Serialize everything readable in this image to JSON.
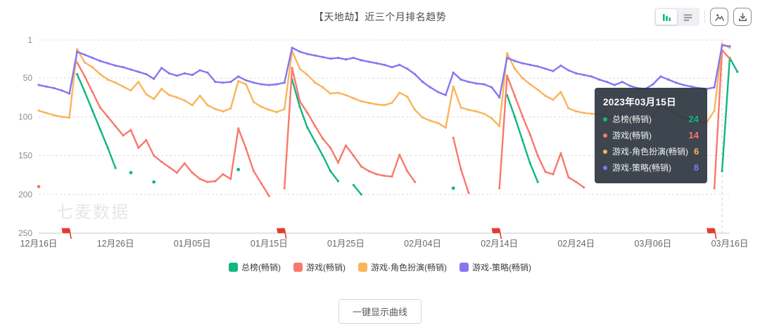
{
  "title": "【天地劫】近三个月排名趋势",
  "toolbar": {
    "chart_type_toggle": [
      "bar-chart-view",
      "list-view"
    ],
    "buttons": [
      "preview-image",
      "download-image"
    ],
    "active_color": "#10b77f",
    "inactive_color": "#9aa0a6"
  },
  "tooltip": {
    "date": "2023年03月15日",
    "rows": [
      {
        "label": "总榜(畅销)",
        "value": "24",
        "color": "#10b77f"
      },
      {
        "label": "游戏(畅销)",
        "value": "14",
        "color": "#f8796c"
      },
      {
        "label": "游戏-角色扮演(畅销)",
        "value": "6",
        "color": "#fbb45c"
      },
      {
        "label": "游戏-策略(畅销)",
        "value": "8",
        "color": "#8676f0"
      }
    ]
  },
  "legend": {
    "items": [
      {
        "label": "总榜(畅销)",
        "color": "#10b77f"
      },
      {
        "label": "游戏(畅销)",
        "color": "#f8796c"
      },
      {
        "label": "游戏-角色扮演(畅销)",
        "color": "#fbb45c"
      },
      {
        "label": "游戏-策略(畅销)",
        "color": "#8676f0"
      }
    ]
  },
  "actions": {
    "show_curves_label": "一键显示曲线"
  },
  "chart_data": {
    "type": "line",
    "title": "【天地劫】近三个月排名趋势",
    "watermark": "七麦数据",
    "y_axis": {
      "inverted": true,
      "range": [
        1,
        250
      ],
      "ticks": [
        1,
        50,
        100,
        150,
        200,
        250
      ],
      "grid": "dashed"
    },
    "x_axis": {
      "ticks": [
        {
          "day": 0,
          "label": "12月16日"
        },
        {
          "day": 10,
          "label": "12月26日"
        },
        {
          "day": 20,
          "label": "01月05日"
        },
        {
          "day": 30,
          "label": "01月15日"
        },
        {
          "day": 40,
          "label": "01月25日"
        },
        {
          "day": 50,
          "label": "02月04日"
        },
        {
          "day": 60,
          "label": "02月14日"
        },
        {
          "day": 70,
          "label": "02月24日"
        },
        {
          "day": 80,
          "label": "03月06日"
        },
        {
          "day": 90,
          "label": "03月16日"
        }
      ]
    },
    "flag_marker_days": [
      4,
      32,
      60,
      88
    ],
    "flag_color": "#e8392f",
    "crosshair_day": 89,
    "legend_position": "bottom",
    "series": [
      {
        "name": "总榜(畅销)",
        "color": "#10b77f",
        "values": [
          null,
          null,
          null,
          null,
          null,
          45,
          68,
          92,
          116,
          140,
          166,
          null,
          172,
          null,
          null,
          184,
          null,
          null,
          null,
          null,
          null,
          null,
          null,
          null,
          null,
          null,
          168,
          null,
          null,
          null,
          null,
          null,
          null,
          52,
          87,
          114,
          132,
          150,
          170,
          183,
          null,
          188,
          200,
          null,
          null,
          null,
          null,
          null,
          null,
          null,
          null,
          null,
          null,
          null,
          192,
          null,
          null,
          null,
          null,
          null,
          null,
          72,
          100,
          130,
          160,
          184,
          null,
          null,
          null,
          null,
          null,
          null,
          null,
          null,
          null,
          null,
          null,
          null,
          null,
          null,
          null,
          null,
          null,
          null,
          null,
          null,
          null,
          null,
          null,
          170,
          24,
          42
        ]
      },
      {
        "name": "游戏(畅销)",
        "color": "#f8796c",
        "values": [
          190,
          null,
          null,
          null,
          null,
          30,
          48,
          68,
          88,
          100,
          112,
          124,
          117,
          140,
          130,
          150,
          158,
          165,
          172,
          160,
          172,
          180,
          184,
          183,
          174,
          180,
          115,
          141,
          170,
          186,
          202,
          null,
          192,
          37,
          80,
          95,
          112,
          128,
          140,
          159,
          137,
          150,
          164,
          170,
          174,
          176,
          177,
          149,
          170,
          184,
          null,
          null,
          null,
          null,
          127,
          168,
          198,
          null,
          null,
          null,
          192,
          47,
          73,
          99,
          123,
          150,
          171,
          174,
          147,
          178,
          184,
          191,
          null,
          null,
          null,
          null,
          null,
          null,
          null,
          null,
          null,
          null,
          null,
          null,
          null,
          null,
          null,
          null,
          192,
          14,
          25
        ]
      },
      {
        "name": "游戏-角色扮演(畅销)",
        "color": "#fbb45c",
        "values": [
          92,
          95,
          98,
          100,
          101,
          13,
          30,
          36,
          45,
          52,
          56,
          61,
          66,
          55,
          71,
          77,
          64,
          72,
          75,
          79,
          85,
          73,
          85,
          90,
          93,
          89,
          54,
          58,
          81,
          87,
          91,
          94,
          90,
          15,
          38,
          46,
          56,
          62,
          70,
          69,
          72,
          76,
          80,
          82,
          84,
          85,
          82,
          69,
          74,
          91,
          101,
          105,
          108,
          114,
          61,
          88,
          91,
          93,
          96,
          102,
          112,
          18,
          38,
          50,
          58,
          65,
          73,
          78,
          68,
          89,
          93,
          95,
          96,
          97,
          99,
          101,
          96,
          102,
          105,
          107,
          100,
          85,
          90,
          96,
          101,
          104,
          106,
          107,
          92,
          6,
          11
        ]
      },
      {
        "name": "游戏-策略(畅销)",
        "color": "#8676f0",
        "values": [
          59,
          61,
          63,
          66,
          70,
          16,
          20,
          24,
          28,
          31,
          34,
          36,
          39,
          42,
          45,
          51,
          37,
          44,
          47,
          44,
          46,
          40,
          43,
          55,
          56,
          55,
          48,
          53,
          56,
          58,
          59,
          58,
          56,
          11,
          16,
          19,
          21,
          23,
          25,
          24,
          26,
          24,
          27,
          29,
          31,
          33,
          36,
          33,
          38,
          45,
          55,
          62,
          68,
          72,
          43,
          52,
          55,
          57,
          58,
          62,
          75,
          24,
          28,
          31,
          33,
          35,
          38,
          41,
          34,
          40,
          44,
          46,
          48,
          52,
          55,
          59,
          55,
          60,
          63,
          64,
          58,
          48,
          52,
          56,
          59,
          61,
          63,
          64,
          62,
          8,
          9
        ]
      }
    ]
  }
}
